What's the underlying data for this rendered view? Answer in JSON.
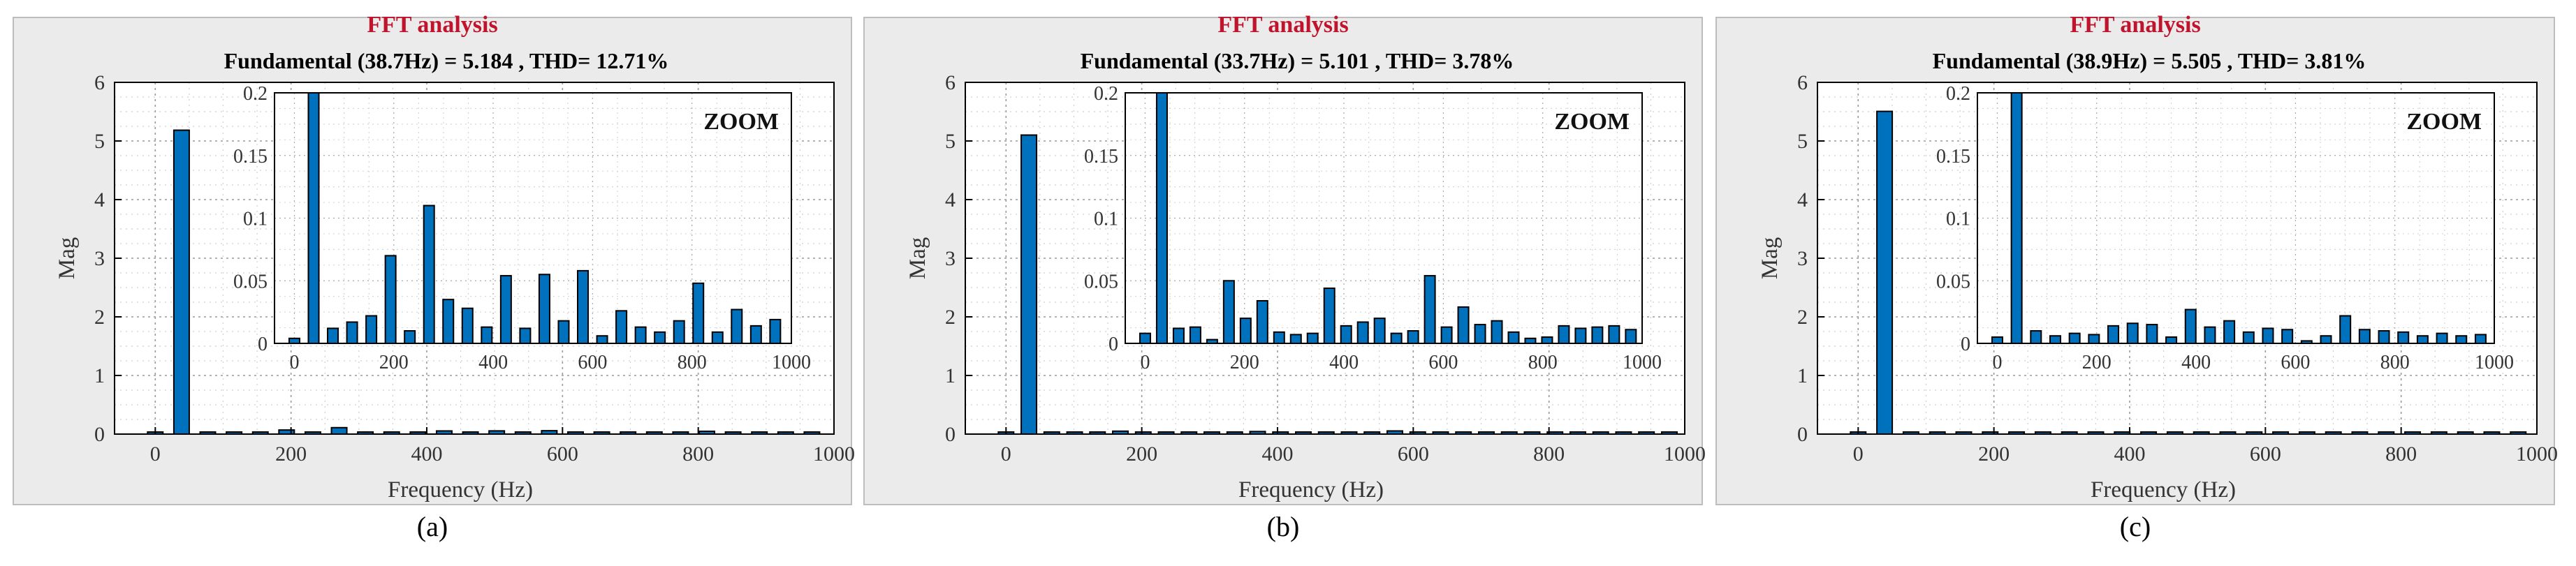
{
  "chart_data": [
    {
      "type": "bar",
      "title": "FFT analysis",
      "subtitle": "Fundamental (38.7Hz) = 5.184 , THD= 12.71%",
      "panel_label": "(a)",
      "xlabel": "Frequency (Hz)",
      "ylabel": "Mag",
      "xlim": [
        -60,
        1000
      ],
      "ylim": [
        0,
        6
      ],
      "xticks": [
        0,
        200,
        400,
        600,
        800,
        1000
      ],
      "yticks": [
        0,
        1,
        2,
        3,
        4,
        5,
        6
      ],
      "grid": true,
      "x": [
        0,
        38.7,
        77.4,
        116.1,
        154.8,
        193.5,
        232.2,
        270.9,
        309.6,
        348.3,
        387,
        425.7,
        464.4,
        503.1,
        541.8,
        580.5,
        619.2,
        657.9,
        696.6,
        735.3,
        774,
        812.7,
        851.4,
        890.1,
        928.8,
        967.5
      ],
      "values": [
        0.004,
        5.184,
        0.012,
        0.017,
        0.022,
        0.07,
        0.01,
        0.11,
        0.035,
        0.028,
        0.013,
        0.054,
        0.012,
        0.055,
        0.018,
        0.058,
        0.006,
        0.026,
        0.013,
        0.009,
        0.018,
        0.048,
        0.009,
        0.027,
        0.014,
        0.019
      ],
      "zoom": {
        "label": "ZOOM",
        "xlim": [
          -40,
          1000
        ],
        "ylim": [
          0,
          0.2
        ],
        "xticks": [
          0,
          200,
          400,
          600,
          800,
          1000
        ],
        "yticks": [
          0,
          0.05,
          0.1,
          0.15,
          0.2
        ]
      }
    },
    {
      "type": "bar",
      "title": "FFT analysis",
      "subtitle": "Fundamental (33.7Hz) = 5.101 , THD= 3.78%",
      "panel_label": "(b)",
      "xlabel": "Frequency (Hz)",
      "ylabel": "Mag",
      "xlim": [
        -60,
        1000
      ],
      "ylim": [
        0,
        6
      ],
      "xticks": [
        0,
        200,
        400,
        600,
        800,
        1000
      ],
      "yticks": [
        0,
        1,
        2,
        3,
        4,
        5,
        6
      ],
      "grid": true,
      "x": [
        0,
        33.7,
        67.4,
        101.1,
        134.8,
        168.5,
        202.2,
        235.9,
        269.6,
        303.3,
        337,
        370.7,
        404.4,
        438.1,
        471.8,
        505.5,
        539.2,
        572.9,
        606.6,
        640.3,
        674,
        707.7,
        741.4,
        775.1,
        808.8,
        842.5,
        876.2,
        909.9,
        943.6,
        977.3
      ],
      "values": [
        0.008,
        5.101,
        0.012,
        0.013,
        0.003,
        0.05,
        0.02,
        0.034,
        0.009,
        0.007,
        0.008,
        0.044,
        0.014,
        0.017,
        0.02,
        0.008,
        0.01,
        0.054,
        0.013,
        0.029,
        0.015,
        0.018,
        0.009,
        0.004,
        0.005,
        0.014,
        0.012,
        0.013,
        0.014,
        0.011
      ],
      "zoom": {
        "label": "ZOOM",
        "xlim": [
          -40,
          1000
        ],
        "ylim": [
          0,
          0.2
        ],
        "xticks": [
          0,
          200,
          400,
          600,
          800,
          1000
        ],
        "yticks": [
          0,
          0.05,
          0.1,
          0.15,
          0.2
        ]
      }
    },
    {
      "type": "bar",
      "title": "FFT analysis",
      "subtitle": "Fundamental (38.9Hz) = 5.505 , THD= 3.81%",
      "panel_label": "(c)",
      "xlabel": "Frequency (Hz)",
      "ylabel": "Mag",
      "xlim": [
        -60,
        1000
      ],
      "ylim": [
        0,
        6
      ],
      "xticks": [
        0,
        200,
        400,
        600,
        800,
        1000
      ],
      "yticks": [
        0,
        1,
        2,
        3,
        4,
        5,
        6
      ],
      "grid": true,
      "x": [
        0,
        38.9,
        77.8,
        116.7,
        155.6,
        194.5,
        233.4,
        272.3,
        311.2,
        350.1,
        389,
        427.9,
        466.8,
        505.7,
        544.6,
        583.5,
        622.4,
        661.3,
        700.2,
        739.1,
        778,
        816.9,
        855.8,
        894.7,
        933.6,
        972.5
      ],
      "values": [
        0.005,
        5.505,
        0.01,
        0.006,
        0.008,
        0.007,
        0.014,
        0.016,
        0.015,
        0.005,
        0.027,
        0.013,
        0.018,
        0.009,
        0.012,
        0.011,
        0.002,
        0.006,
        0.022,
        0.011,
        0.01,
        0.009,
        0.006,
        0.008,
        0.006,
        0.007
      ],
      "zoom": {
        "label": "ZOOM",
        "xlim": [
          -40,
          1000
        ],
        "ylim": [
          0,
          0.2
        ],
        "xticks": [
          0,
          200,
          400,
          600,
          800,
          1000
        ],
        "yticks": [
          0,
          0.05,
          0.1,
          0.15,
          0.2
        ]
      }
    }
  ],
  "colors": {
    "bar": "#0072bd",
    "bar_edge": "#000000",
    "title": "#c0142c",
    "frame": "#ebebeb",
    "grid": "#a6a6a6"
  }
}
